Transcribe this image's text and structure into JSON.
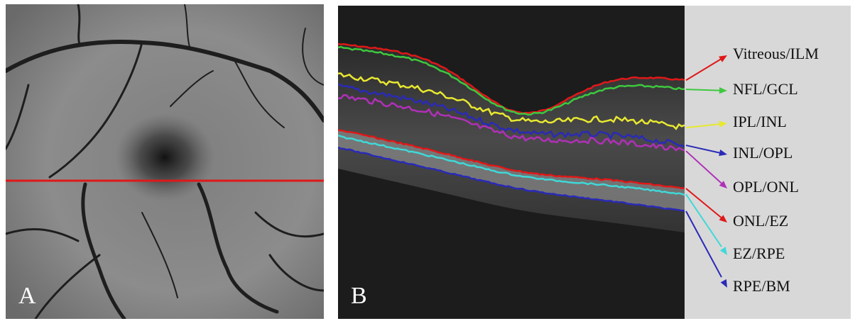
{
  "panels": {
    "a": {
      "label": "A"
    },
    "b": {
      "label": "B"
    }
  },
  "layers": [
    {
      "label": "Vitreous/ILM",
      "color": "#e01818"
    },
    {
      "label": "NFL/GCL",
      "color": "#3ec83e"
    },
    {
      "label": "IPL/INL",
      "color": "#e8e830"
    },
    {
      "label": "INL/OPL",
      "color": "#2a2ab8"
    },
    {
      "label": "OPL/ONL",
      "color": "#b030b8"
    },
    {
      "label": "ONL/EZ",
      "color": "#e01818"
    },
    {
      "label": "EZ/RPE",
      "color": "#40d8d8"
    },
    {
      "label": "RPE/BM",
      "color": "#2a2ab8"
    }
  ]
}
